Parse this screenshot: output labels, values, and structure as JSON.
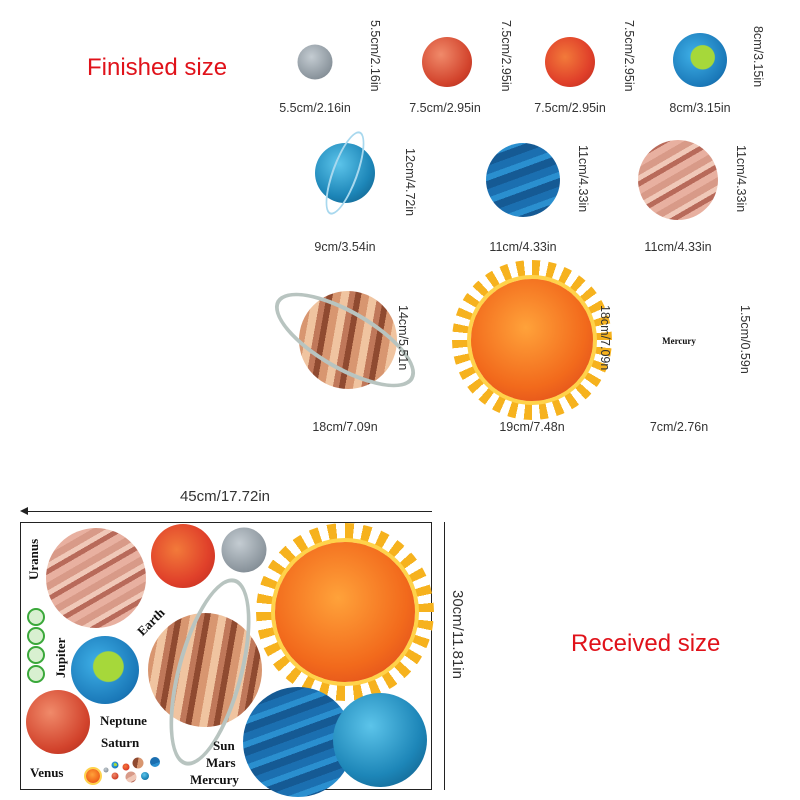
{
  "headings": {
    "finished": "Finished size",
    "received": "Received size"
  },
  "finished_items": [
    {
      "planet": "grey-planet",
      "width": "5.5cm/2.16in",
      "height": "5.5cm/2.16in"
    },
    {
      "planet": "red-planet",
      "width": "7.5cm/2.95in",
      "height": "7.5cm/2.95in"
    },
    {
      "planet": "red-planet",
      "width": "7.5cm/2.95in",
      "height": "7.5cm/2.95in"
    },
    {
      "planet": "earth",
      "width": "8cm/3.15in",
      "height": "8cm/3.15in"
    },
    {
      "planet": "uranus",
      "width": "9cm/3.54in",
      "height": "12cm/4.72in"
    },
    {
      "planet": "neptune",
      "width": "11cm/4.33in",
      "height": "11cm/4.33in"
    },
    {
      "planet": "jupiter",
      "width": "11cm/4.33in",
      "height": "11cm/4.33in"
    },
    {
      "planet": "saturn",
      "width": "18cm/7.09n",
      "height": "14cm/5.51n"
    },
    {
      "planet": "sun",
      "width": "19cm/7.48n",
      "height": "18cm/7.09n"
    },
    {
      "planet": "text",
      "text": "Mercury",
      "width": "7cm/2.76n",
      "height": "1.5cm/0.59n"
    }
  ],
  "sheet": {
    "width": "45cm/17.72in",
    "height": "30cm/11.81in",
    "labels": {
      "uranus": "Uranus",
      "jupiter": "Jupiter",
      "earth": "Earth",
      "neptune": "Neptune",
      "saturn": "Saturn",
      "venus": "Venus",
      "sun": "Sun",
      "mars": "Mars",
      "mercury": "Mercury"
    }
  }
}
